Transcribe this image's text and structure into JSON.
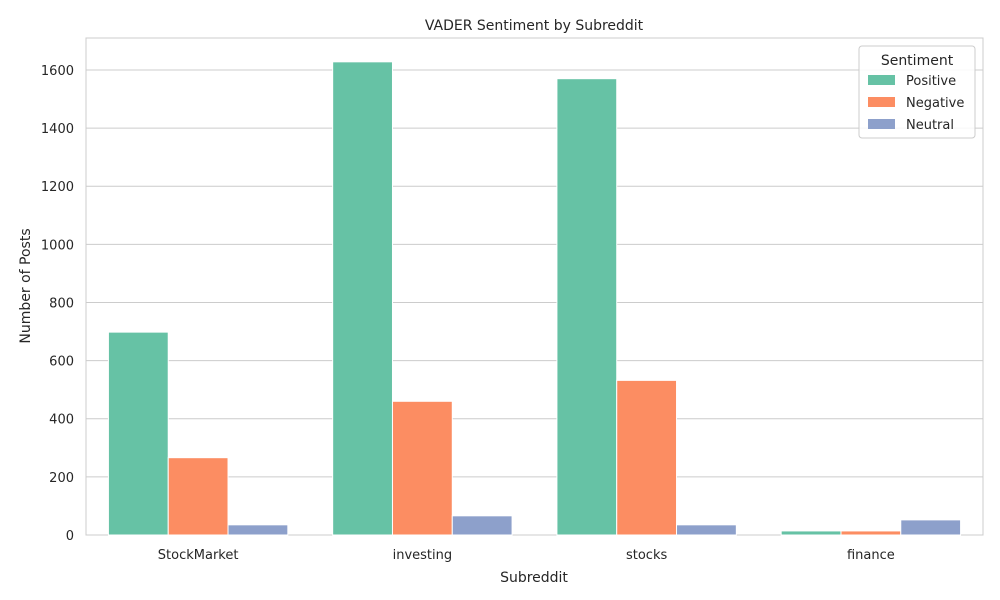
{
  "chart_data": {
    "type": "bar",
    "title": "VADER Sentiment by Subreddit",
    "xlabel": "Subreddit",
    "ylabel": "Number of Posts",
    "categories": [
      "StockMarket",
      "investing",
      "stocks",
      "finance"
    ],
    "series": [
      {
        "name": "Positive",
        "color": "#66c2a5",
        "values": [
          698,
          1628,
          1570,
          14
        ]
      },
      {
        "name": "Negative",
        "color": "#fc8d62",
        "values": [
          266,
          460,
          532,
          14
        ]
      },
      {
        "name": "Neutral",
        "color": "#8da0cb",
        "values": [
          35,
          66,
          35,
          52
        ]
      }
    ],
    "ylim": [
      0,
      1710
    ],
    "yticks": [
      0,
      200,
      400,
      600,
      800,
      1000,
      1200,
      1400,
      1600
    ],
    "grid": "horizontal",
    "legend": {
      "title": "Sentiment",
      "placement": "top-right"
    }
  }
}
